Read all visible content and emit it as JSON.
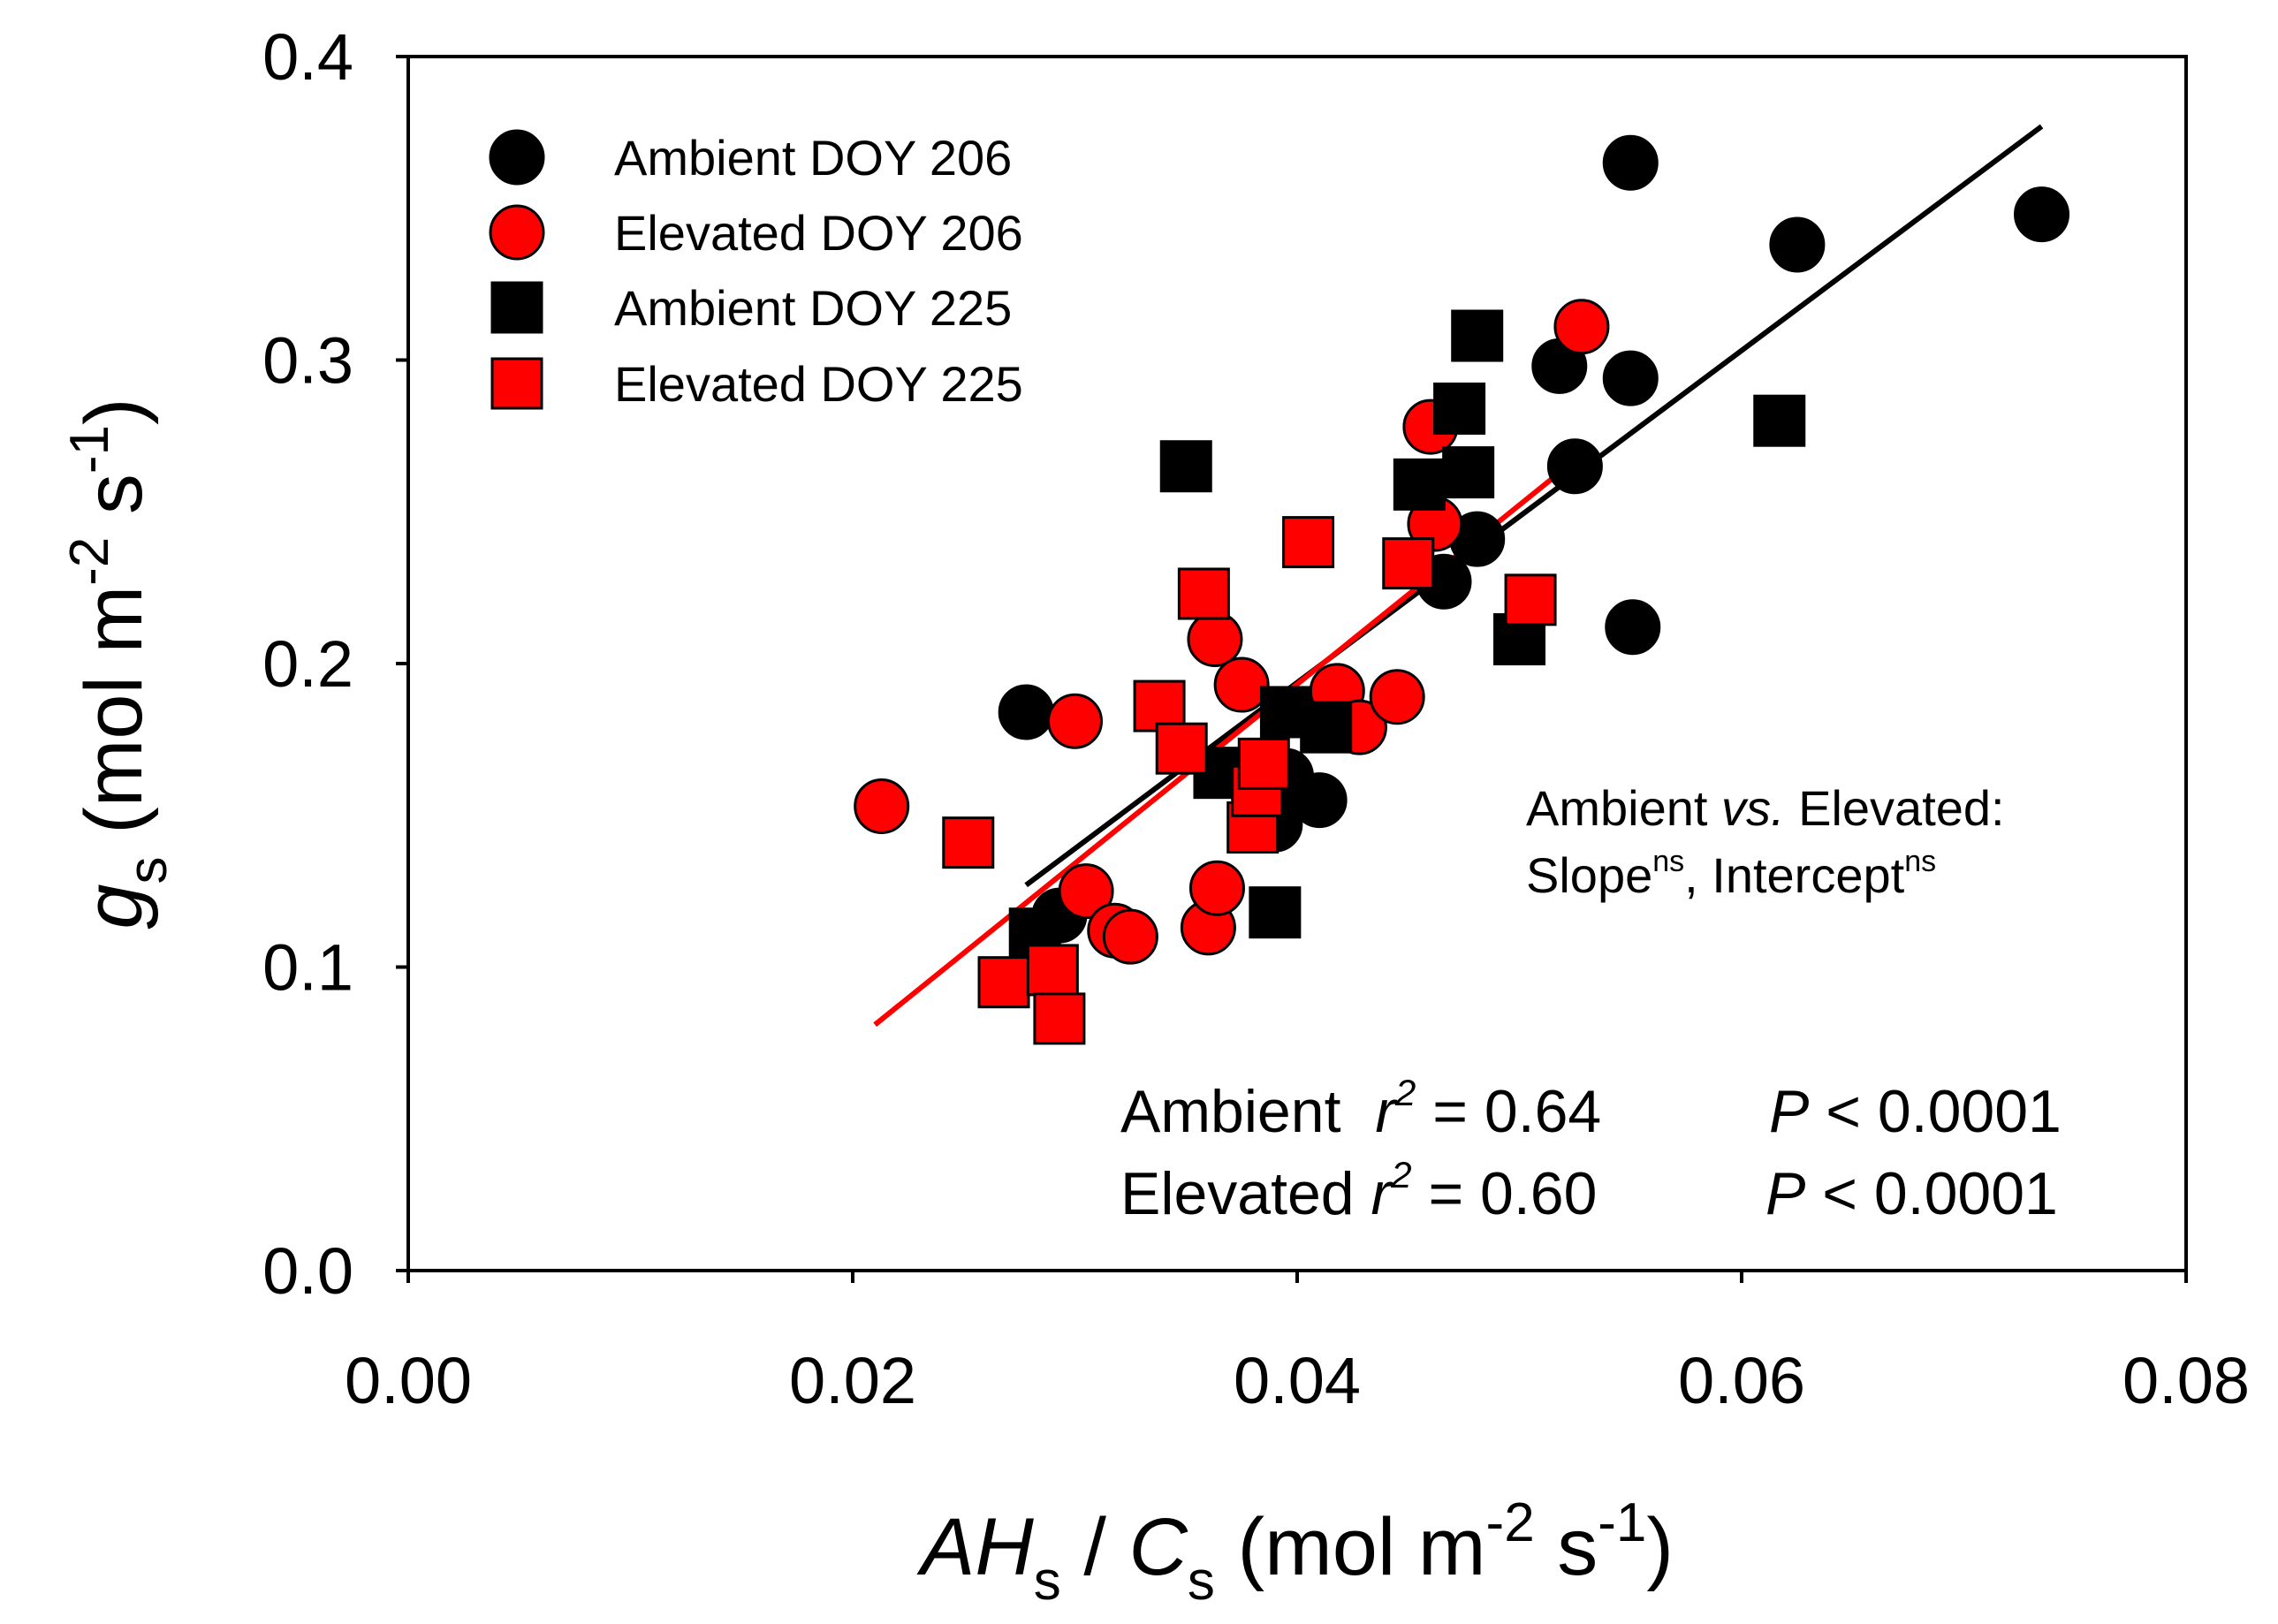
{
  "chart_data": {
    "type": "scatter",
    "xlabel_parts": {
      "a": "AH",
      "a_sub": "s",
      "sep": " / ",
      "c": "C",
      "c_sub": "s",
      "unit_pre": " (mol m",
      "exp1": "-2",
      "unit_mid": " s",
      "exp2": "-1",
      "unit_post": ")"
    },
    "ylabel_parts": {
      "g": "g",
      "g_sub": "s",
      "unit_pre": " (mol m",
      "exp1": "-2",
      "unit_mid": " s",
      "exp2": "-1",
      "unit_post": ")"
    },
    "xlim": [
      0,
      0.08
    ],
    "ylim": [
      0,
      0.4
    ],
    "xticks": [
      "0.00",
      "0.02",
      "0.04",
      "0.06",
      "0.08"
    ],
    "yticks": [
      "0.0",
      "0.1",
      "0.2",
      "0.3",
      "0.4"
    ],
    "legend_position": "top-left",
    "grid": false,
    "series": [
      {
        "name": "Ambient DOY 206",
        "marker": "circle",
        "color": "#000000",
        "points": [
          [
            0.0278,
            0.184
          ],
          [
            0.0293,
            0.117
          ],
          [
            0.0395,
            0.163
          ],
          [
            0.039,
            0.147
          ],
          [
            0.041,
            0.155
          ],
          [
            0.0466,
            0.227
          ],
          [
            0.0481,
            0.241
          ],
          [
            0.0518,
            0.298
          ],
          [
            0.0525,
            0.265
          ],
          [
            0.055,
            0.365
          ],
          [
            0.055,
            0.294
          ],
          [
            0.0551,
            0.212
          ],
          [
            0.0625,
            0.338
          ],
          [
            0.0735,
            0.348
          ]
        ]
      },
      {
        "name": "Elevated DOY 206",
        "marker": "circle",
        "color": "#ff0000",
        "points": [
          [
            0.0213,
            0.153
          ],
          [
            0.03,
            0.181
          ],
          [
            0.0305,
            0.125
          ],
          [
            0.0318,
            0.112
          ],
          [
            0.0325,
            0.11
          ],
          [
            0.036,
            0.113
          ],
          [
            0.0363,
            0.208
          ],
          [
            0.0364,
            0.126
          ],
          [
            0.0375,
            0.193
          ],
          [
            0.0418,
            0.191
          ],
          [
            0.0428,
            0.179
          ],
          [
            0.0445,
            0.189
          ],
          [
            0.046,
            0.278
          ],
          [
            0.0462,
            0.246
          ],
          [
            0.0528,
            0.311
          ]
        ]
      },
      {
        "name": "Ambient DOY 225",
        "marker": "square",
        "color": "#000000",
        "points": [
          [
            0.0282,
            0.111
          ],
          [
            0.035,
            0.265
          ],
          [
            0.0365,
            0.164
          ],
          [
            0.039,
            0.118
          ],
          [
            0.0395,
            0.184
          ],
          [
            0.0413,
            0.179
          ],
          [
            0.0455,
            0.259
          ],
          [
            0.0473,
            0.284
          ],
          [
            0.0477,
            0.263
          ],
          [
            0.0481,
            0.308
          ],
          [
            0.05,
            0.208
          ],
          [
            0.0617,
            0.28
          ]
        ]
      },
      {
        "name": "Elevated DOY 225",
        "marker": "square",
        "color": "#ff0000",
        "points": [
          [
            0.0252,
            0.141
          ],
          [
            0.0268,
            0.095
          ],
          [
            0.029,
            0.099
          ],
          [
            0.0293,
            0.083
          ],
          [
            0.0338,
            0.186
          ],
          [
            0.0348,
            0.172
          ],
          [
            0.0358,
            0.223
          ],
          [
            0.038,
            0.146
          ],
          [
            0.0382,
            0.158
          ],
          [
            0.0385,
            0.167
          ],
          [
            0.0405,
            0.24
          ],
          [
            0.045,
            0.233
          ],
          [
            0.0505,
            0.221
          ]
        ]
      }
    ],
    "fit_lines": [
      {
        "series": "Ambient",
        "color": "#000000",
        "x": [
          0.0278,
          0.0735
        ],
        "y": [
          0.127,
          0.377
        ]
      },
      {
        "series": "Elevated",
        "color": "#ff0000",
        "x": [
          0.021,
          0.0525
        ],
        "y": [
          0.081,
          0.267
        ]
      }
    ],
    "annotations": {
      "compare_line1_a": "Ambient ",
      "compare_line1_b": "vs.",
      "compare_line1_c": " Elevated:",
      "compare_line2_a": "Slope",
      "compare_line2_a_sup": "ns",
      "compare_line2_b": ", Intercept",
      "compare_line2_b_sup": "ns",
      "stat_ambient": {
        "label": "Ambient ",
        "r": "r",
        "r_exp": "2",
        "eq": " = 0.64",
        "p": "P",
        "p_rest": " < 0.0001"
      },
      "stat_elevated": {
        "label": "Elevated ",
        "r": "r",
        "r_exp": "2",
        "eq": " = 0.60",
        "p": "P",
        "p_rest": " < 0.0001"
      }
    }
  }
}
